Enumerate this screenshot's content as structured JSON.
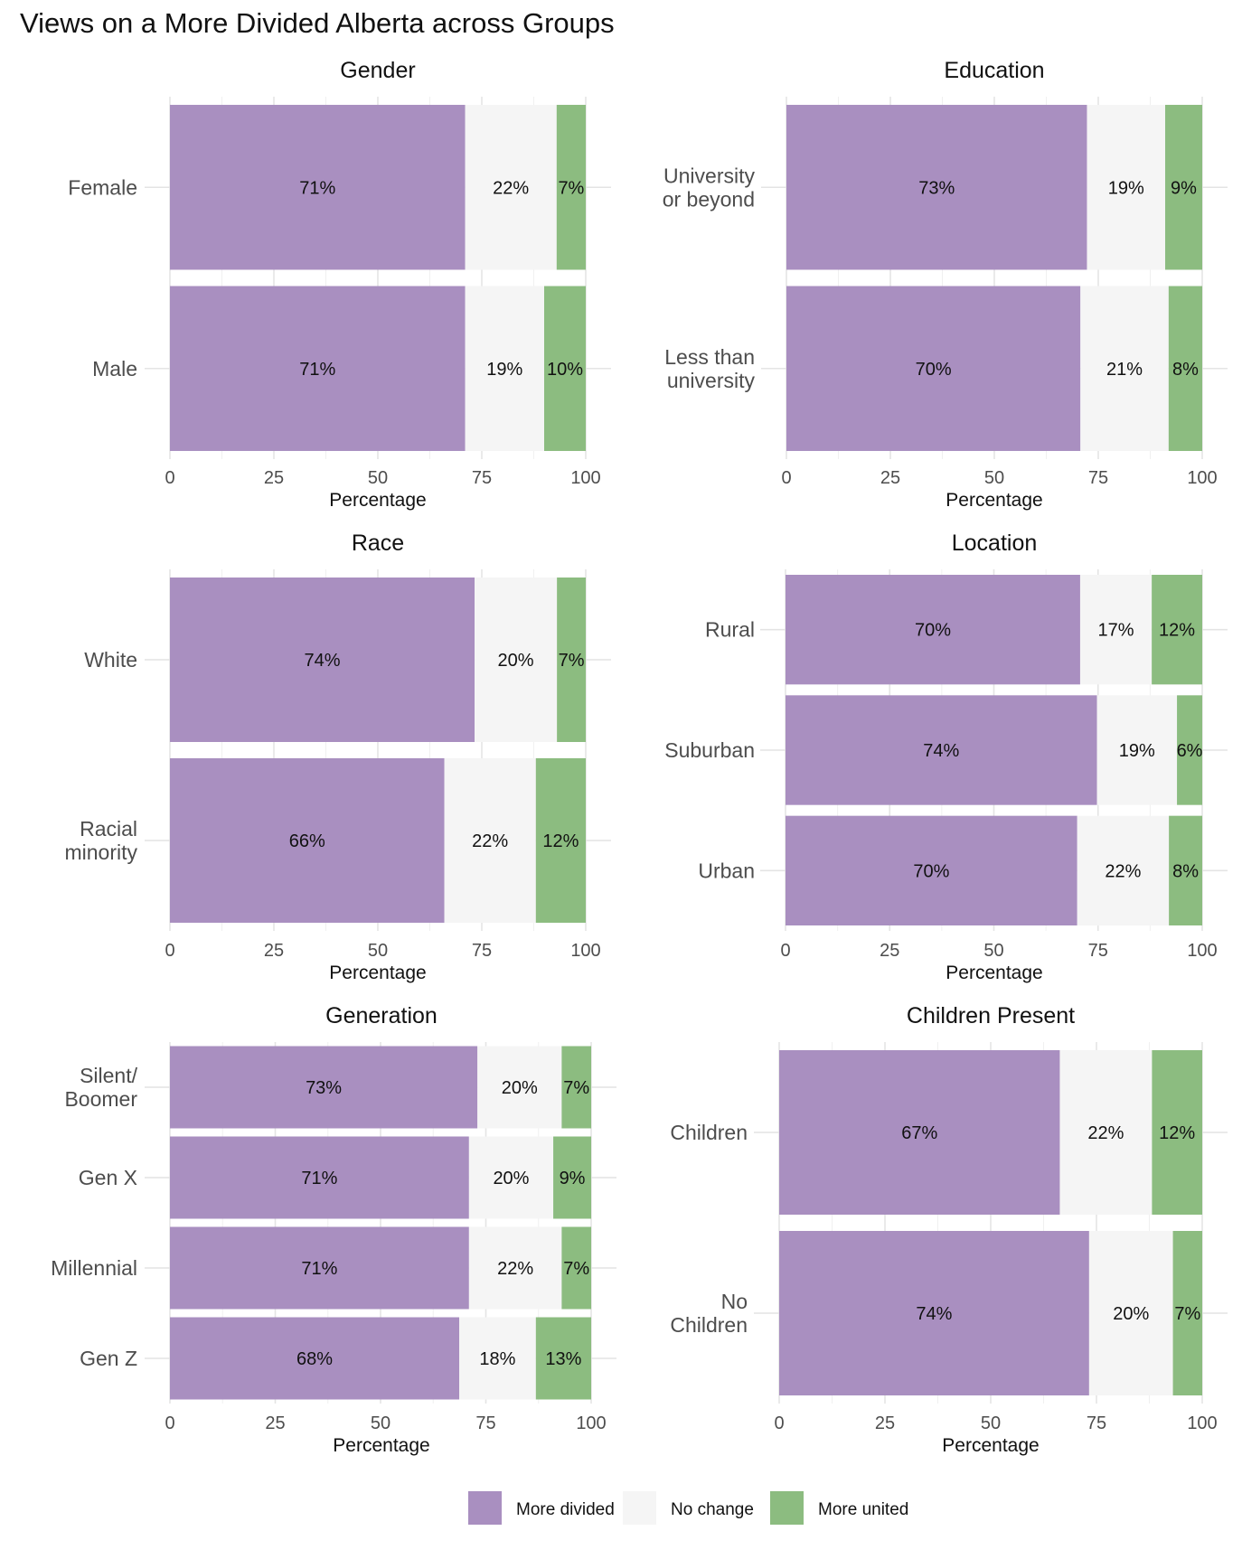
{
  "chart_data": {
    "type": "bar",
    "orientation": "horizontal-stacked",
    "title": "Views on a More Divided Alberta across Groups",
    "xlabel": "Percentage",
    "xlim": [
      0,
      100
    ],
    "xticks": [
      "0",
      "25",
      "50",
      "75",
      "100"
    ],
    "legend": {
      "position": "bottom",
      "items": [
        {
          "key": "divided",
          "label": "More divided",
          "color": "#a98fc0"
        },
        {
          "key": "nochange",
          "label": "No change",
          "color": "#f5f5f5"
        },
        {
          "key": "united",
          "label": "More united",
          "color": "#8cbc80"
        }
      ]
    },
    "panels": [
      {
        "title": "Gender",
        "categories": [
          {
            "label": [
              "Female"
            ],
            "values": [
              71,
              22,
              7
            ],
            "labels": [
              "71%",
              "22%",
              "7%"
            ]
          },
          {
            "label": [
              "Male"
            ],
            "values": [
              71,
              19,
              10
            ],
            "labels": [
              "71%",
              "19%",
              "10%"
            ]
          }
        ]
      },
      {
        "title": "Education",
        "categories": [
          {
            "label": [
              "University",
              "or beyond"
            ],
            "values": [
              73,
              19,
              9
            ],
            "labels": [
              "73%",
              "19%",
              "9%"
            ]
          },
          {
            "label": [
              "Less than",
              "university"
            ],
            "values": [
              70,
              21,
              8
            ],
            "labels": [
              "70%",
              "21%",
              "8%"
            ]
          }
        ]
      },
      {
        "title": "Race",
        "categories": [
          {
            "label": [
              "White"
            ],
            "values": [
              74,
              20,
              7
            ],
            "labels": [
              "74%",
              "20%",
              "7%"
            ]
          },
          {
            "label": [
              "Racial",
              "minority"
            ],
            "values": [
              66,
              22,
              12
            ],
            "labels": [
              "66%",
              "22%",
              "12%"
            ]
          }
        ]
      },
      {
        "title": "Location",
        "categories": [
          {
            "label": [
              "Rural"
            ],
            "values": [
              70,
              17,
              12
            ],
            "labels": [
              "70%",
              "17%",
              "12%"
            ]
          },
          {
            "label": [
              "Suburban"
            ],
            "values": [
              74,
              19,
              6
            ],
            "labels": [
              "74%",
              "19%",
              "6%"
            ]
          },
          {
            "label": [
              "Urban"
            ],
            "values": [
              70,
              22,
              8
            ],
            "labels": [
              "70%",
              "22%",
              "8%"
            ]
          }
        ]
      },
      {
        "title": "Generation",
        "categories": [
          {
            "label": [
              "Silent/",
              "Boomer"
            ],
            "values": [
              73,
              20,
              7
            ],
            "labels": [
              "73%",
              "20%",
              "7%"
            ]
          },
          {
            "label": [
              "Gen X"
            ],
            "values": [
              71,
              20,
              9
            ],
            "labels": [
              "71%",
              "20%",
              "9%"
            ]
          },
          {
            "label": [
              "Millennial"
            ],
            "values": [
              71,
              22,
              7
            ],
            "labels": [
              "71%",
              "22%",
              "7%"
            ]
          },
          {
            "label": [
              "Gen Z"
            ],
            "values": [
              68,
              18,
              13
            ],
            "labels": [
              "68%",
              "18%",
              "13%"
            ]
          }
        ]
      },
      {
        "title": "Children Present",
        "categories": [
          {
            "label": [
              "Children"
            ],
            "values": [
              67,
              22,
              12
            ],
            "labels": [
              "67%",
              "22%",
              "12%"
            ]
          },
          {
            "label": [
              "No",
              "Children"
            ],
            "values": [
              74,
              20,
              7
            ],
            "labels": [
              "74%",
              "20%",
              "7%"
            ]
          }
        ]
      }
    ]
  }
}
